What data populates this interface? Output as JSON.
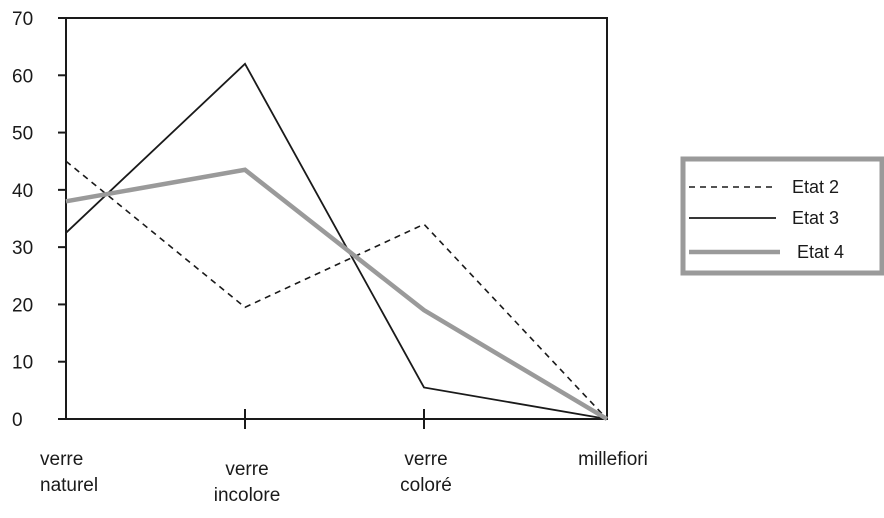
{
  "chart_data": {
    "type": "line",
    "title": "",
    "xlabel": "",
    "ylabel": "",
    "categories": [
      [
        "verre",
        "naturel"
      ],
      [
        "verre",
        "incolore"
      ],
      [
        "verre",
        "coloré"
      ],
      [
        "millefiori"
      ]
    ],
    "ylim": [
      0,
      70
    ],
    "yticks": [
      0,
      10,
      20,
      30,
      40,
      50,
      60,
      70
    ],
    "grid": false,
    "legend_position": "right",
    "series": [
      {
        "name": "Etat 2",
        "values": [
          45,
          19.5,
          34,
          0
        ],
        "style": "dashed",
        "color": "#1a1a1a"
      },
      {
        "name": "Etat 3",
        "values": [
          32.5,
          62,
          5.5,
          0
        ],
        "style": "solid",
        "color": "#1a1a1a"
      },
      {
        "name": "Etat 4",
        "values": [
          38,
          43.5,
          19,
          0
        ],
        "style": "thick",
        "color": "#9a9a9a"
      }
    ]
  }
}
